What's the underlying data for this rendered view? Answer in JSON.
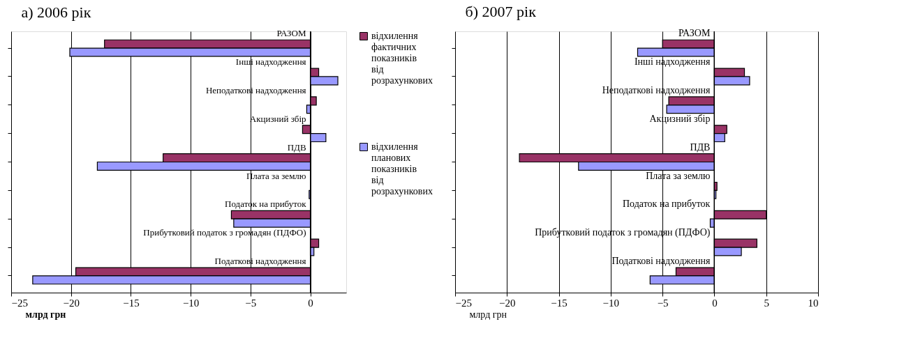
{
  "chart_data": [
    {
      "type": "bar",
      "orientation": "horizontal",
      "title": "а) 2006 рік",
      "xlabel": "млрд грн",
      "categories": [
        "РАЗОМ",
        "Інші надходження",
        "Неподаткові надходження",
        "Акцизний збір",
        "ПДВ",
        "Плата за землю",
        "Податок на прибуток",
        "Прибутковий податок з громадян (ПДФО)",
        "Податкові надходження"
      ],
      "series": [
        {
          "name": "відхилення фактичних показників від розрахункових",
          "color": "#993366",
          "values": [
            -17.2,
            0.7,
            0.5,
            -0.65,
            -12.3,
            null,
            -6.6,
            0.7,
            -19.6
          ]
        },
        {
          "name": "відхилення планових показників від розрахункових",
          "color": "#9999ff",
          "values": [
            -20.1,
            2.3,
            -0.3,
            1.3,
            -17.8,
            -0.1,
            -6.4,
            0.3,
            -23.2
          ]
        }
      ],
      "xlim": [
        -25,
        3
      ],
      "xticks": [
        -25,
        -20,
        -15,
        -10,
        -5,
        0
      ],
      "grid": "x",
      "legend": "right"
    },
    {
      "type": "bar",
      "orientation": "horizontal",
      "title": "б) 2007 рік",
      "xlabel": "млрд грн",
      "categories": [
        "РАЗОМ",
        "Інші надходження",
        "Неподаткові надходження",
        "Акцизний збір",
        "ПДВ",
        "Плата за землю",
        "Податок на прибуток",
        "Прибутковий податок з громадян (ПДФО)",
        "Податкові надходження"
      ],
      "series": [
        {
          "color": "#993366",
          "values": [
            -5.0,
            2.9,
            -4.4,
            1.2,
            -18.8,
            0.25,
            5.0,
            4.1,
            -3.7
          ]
        },
        {
          "color": "#9999ff",
          "values": [
            -7.4,
            3.4,
            -4.6,
            1.0,
            -13.1,
            0.15,
            -0.4,
            2.6,
            -6.2
          ]
        }
      ],
      "xlim": [
        -25,
        10
      ],
      "xticks": [
        -25,
        -20,
        -15,
        -10,
        -5,
        0,
        5,
        10
      ],
      "grid": true,
      "legend": false
    }
  ]
}
